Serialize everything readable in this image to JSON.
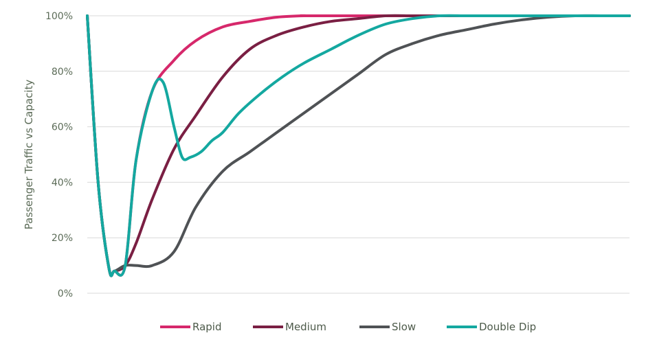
{
  "chart_data": {
    "type": "line",
    "title": "",
    "xlabel": "",
    "ylabel": "Passenger Traffic vs Capacity",
    "ylim": [
      0,
      100
    ],
    "xlim": [
      0,
      100
    ],
    "yticks": [
      "0%",
      "20%",
      "40%",
      "60%",
      "80%",
      "100%"
    ],
    "ytick_values": [
      0,
      20,
      40,
      60,
      80,
      100
    ],
    "grid": true,
    "legend_position": "bottom",
    "series": [
      {
        "name": "Rapid",
        "color": "#d6286b",
        "x": [
          0,
          2,
          4,
          5,
          7,
          9,
          12,
          16,
          20,
          25,
          30,
          35,
          40,
          45,
          100
        ],
        "y": [
          100,
          40,
          9,
          8,
          10,
          48,
          73,
          84,
          91,
          96,
          98,
          99.5,
          100,
          100,
          100
        ]
      },
      {
        "name": "Medium",
        "color": "#7a1f43",
        "x": [
          0,
          2,
          4,
          5,
          7,
          9,
          12,
          16,
          20,
          25,
          30,
          35,
          40,
          45,
          50,
          55,
          60,
          65,
          100
        ],
        "y": [
          100,
          40,
          9,
          8,
          10,
          18,
          34,
          52,
          64,
          78,
          88,
          93,
          96,
          98,
          99,
          100,
          100,
          100,
          100
        ]
      },
      {
        "name": "Slow",
        "color": "#4f5255",
        "x": [
          0,
          2,
          4,
          5,
          7,
          9,
          12,
          16,
          20,
          25,
          30,
          35,
          40,
          45,
          50,
          55,
          60,
          65,
          70,
          75,
          80,
          85,
          90,
          95,
          100
        ],
        "y": [
          100,
          40,
          9,
          8,
          10,
          10,
          10,
          15,
          31,
          44,
          51,
          58,
          65,
          72,
          79,
          86,
          90,
          93,
          95,
          97,
          98.5,
          99.5,
          100,
          100,
          100
        ]
      },
      {
        "name": "Double Dip",
        "color": "#14a8a0",
        "x": [
          0,
          2,
          4,
          5,
          7,
          9,
          12,
          14,
          16,
          17.5,
          19,
          21,
          23,
          25,
          28,
          32,
          36,
          40,
          45,
          50,
          55,
          60,
          65,
          70,
          75,
          80,
          85,
          90,
          95,
          100
        ],
        "y": [
          100,
          40,
          9,
          8,
          10,
          48,
          73,
          76,
          60,
          49,
          49,
          51,
          55,
          58,
          65,
          72,
          78,
          83,
          88,
          93,
          97,
          99,
          100,
          100,
          100,
          100,
          100,
          100,
          100,
          100
        ]
      }
    ]
  }
}
